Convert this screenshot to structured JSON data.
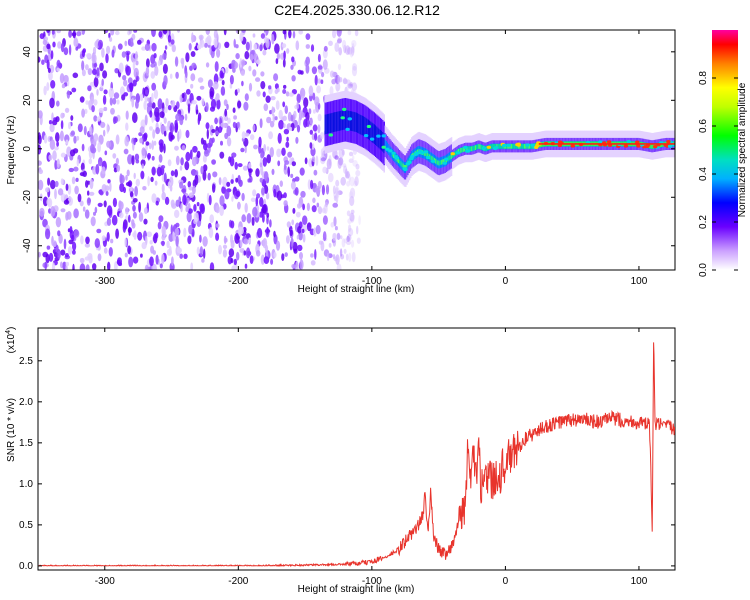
{
  "title": "C2E4.2025.330.06.12.R12",
  "chart_data": [
    {
      "type": "heatmap",
      "xlabel": "Height of straight line (km)",
      "ylabel": "Frequency (Hz)",
      "xlim": [
        -350,
        127
      ],
      "ylim": [
        -50,
        49
      ],
      "xticks": [
        -300,
        -200,
        -100,
        0,
        100
      ],
      "yticks": [
        -40,
        -20,
        0,
        20,
        40
      ],
      "noise_region_x": [
        -350,
        -118
      ],
      "ridge": {
        "x": [
          -135,
          -128,
          -120,
          -112,
          -105,
          -98,
          -92,
          -85,
          -80,
          -75,
          -70,
          -65,
          -60,
          -55,
          -50,
          -45,
          -40,
          -35,
          -30,
          -25,
          -20,
          -15,
          -10,
          -5,
          0,
          10,
          20,
          30,
          40,
          50,
          60,
          70,
          80,
          90,
          100,
          110,
          120,
          127
        ],
        "y": [
          10,
          11,
          12,
          11,
          9,
          6,
          3,
          -2,
          -5,
          -8,
          -3,
          -1,
          -2,
          -4,
          -6,
          -5,
          -3,
          -1,
          0,
          0,
          1,
          0,
          1,
          1,
          1,
          1,
          1,
          2,
          2,
          2,
          2,
          2,
          2,
          2,
          2,
          1,
          2,
          2
        ]
      },
      "colorbar": {
        "label": "Normalized spectral amplitude",
        "range": [
          0,
          1
        ],
        "ticks": [
          "0.0",
          "0.2",
          "0.4",
          "0.6",
          "0.8"
        ]
      }
    },
    {
      "type": "line",
      "xlabel": "Height of straight line (km)",
      "ylabel": "SNR (10 * v/v)",
      "yscale_note": "(x10",
      "yscale_exp": "4",
      "xlim": [
        -350,
        127
      ],
      "ylim": [
        -0.05,
        2.9
      ],
      "xticks": [
        -300,
        -200,
        -100,
        0,
        100
      ],
      "yticks": [
        "0.0",
        "0.5",
        "1.0",
        "1.5",
        "2.0",
        "2.5"
      ],
      "color": "#e8342c",
      "series": [
        {
          "name": "SNR",
          "x": [
            -350,
            -300,
            -250,
            -200,
            -150,
            -120,
            -110,
            -100,
            -95,
            -90,
            -85,
            -80,
            -75,
            -70,
            -65,
            -62,
            -60,
            -58,
            -56,
            -54,
            -50,
            -45,
            -40,
            -35,
            -30,
            -28,
            -26,
            -24,
            -22,
            -20,
            -18,
            -16,
            -14,
            -12,
            -10,
            -8,
            -6,
            -4,
            -2,
            0,
            5,
            10,
            15,
            20,
            25,
            30,
            35,
            40,
            50,
            60,
            70,
            80,
            90,
            100,
            105,
            108,
            110,
            111,
            112,
            115,
            120,
            127
          ],
          "y": [
            0.0,
            0.0,
            0.0,
            0.0,
            0.01,
            0.02,
            0.03,
            0.05,
            0.08,
            0.1,
            0.15,
            0.2,
            0.3,
            0.4,
            0.5,
            0.6,
            0.9,
            0.35,
            0.9,
            0.4,
            0.2,
            0.15,
            0.25,
            0.5,
            0.8,
            1.4,
            0.9,
            1.5,
            1.0,
            1.4,
            0.9,
            1.3,
            1.0,
            1.2,
            1.0,
            1.1,
            1.15,
            1.1,
            1.2,
            1.25,
            1.35,
            1.45,
            1.55,
            1.6,
            1.65,
            1.7,
            1.72,
            1.75,
            1.78,
            1.78,
            1.75,
            1.8,
            1.77,
            1.75,
            1.72,
            1.72,
            0.35,
            2.85,
            1.72,
            1.72,
            1.7,
            1.68
          ]
        }
      ]
    }
  ]
}
